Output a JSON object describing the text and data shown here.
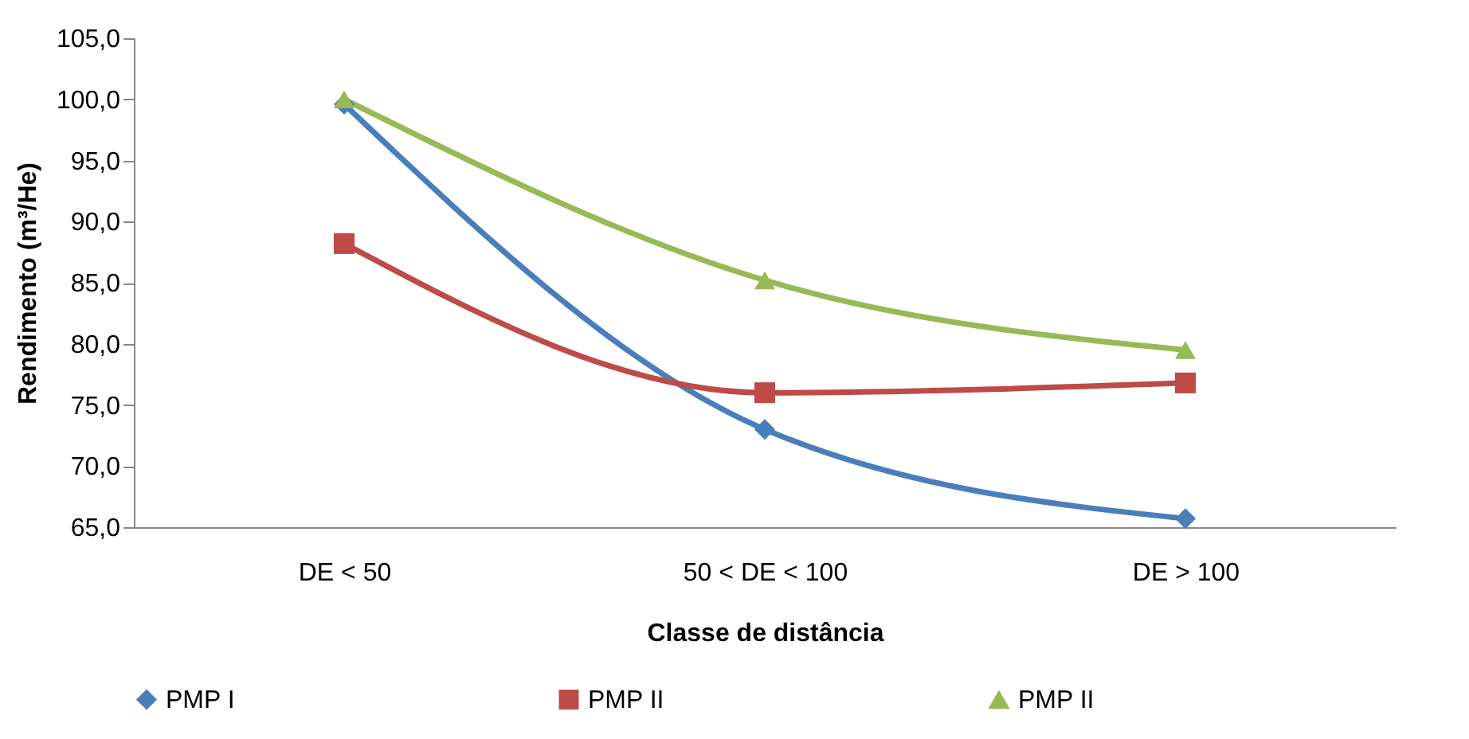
{
  "chart_data": {
    "type": "line",
    "xlabel": "Classe de distância",
    "ylabel": "Rendimento (m³/He)",
    "categories": [
      "DE < 50",
      "50 < DE < 100",
      "DE > 100"
    ],
    "series": [
      {
        "name": "PMP I",
        "color": "#4a7ebb",
        "marker": "diamond",
        "values": [
          99.6,
          73.0,
          65.7
        ]
      },
      {
        "name": "PMP II",
        "color": "#be4b48",
        "marker": "square",
        "values": [
          88.2,
          76.0,
          76.8
        ]
      },
      {
        "name": "PMP II",
        "color": "#98b954",
        "marker": "triangle",
        "values": [
          100.0,
          85.2,
          79.5
        ]
      }
    ],
    "ylim": [
      65,
      105
    ],
    "yticks": [
      {
        "value": 65,
        "label": "65,0"
      },
      {
        "value": 70,
        "label": "70,0"
      },
      {
        "value": 75,
        "label": "75,0"
      },
      {
        "value": 80,
        "label": "80,0"
      },
      {
        "value": 85,
        "label": "85,0"
      },
      {
        "value": 90,
        "label": "90,0"
      },
      {
        "value": 95,
        "label": "95,0"
      },
      {
        "value": 100,
        "label": "100,0"
      },
      {
        "value": 105,
        "label": "105,0"
      }
    ],
    "grid": false,
    "legend": "bottom",
    "line_style": "solid"
  }
}
